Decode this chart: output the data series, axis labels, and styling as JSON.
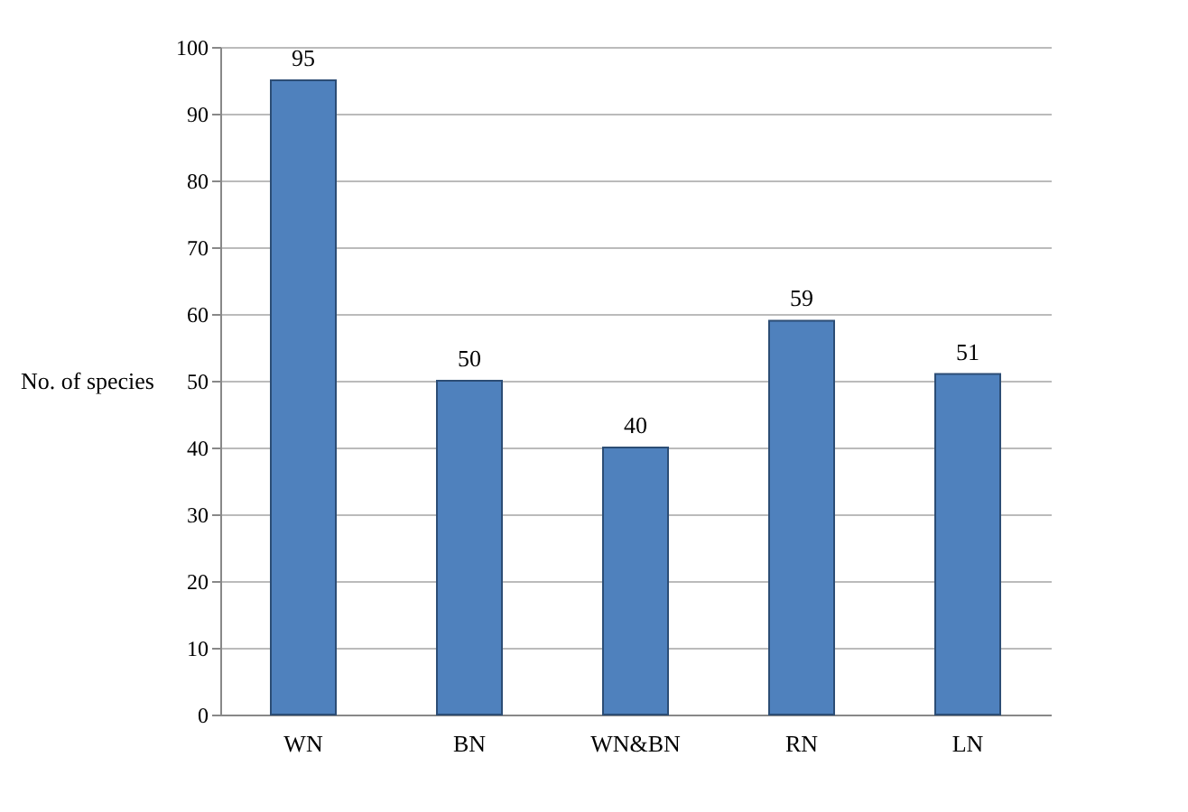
{
  "chart_data": {
    "type": "bar",
    "ylabel": "No. of species",
    "categories": [
      "WN",
      "BN",
      "WN&BN",
      "RN",
      "LN"
    ],
    "values": [
      95,
      50,
      40,
      59,
      51
    ],
    "color": "#4f81bd",
    "ylim": [
      0,
      100
    ],
    "yticks": [
      0,
      10,
      20,
      30,
      40,
      50,
      60,
      70,
      80,
      90,
      100
    ],
    "grid": "y",
    "data_labels": true
  }
}
